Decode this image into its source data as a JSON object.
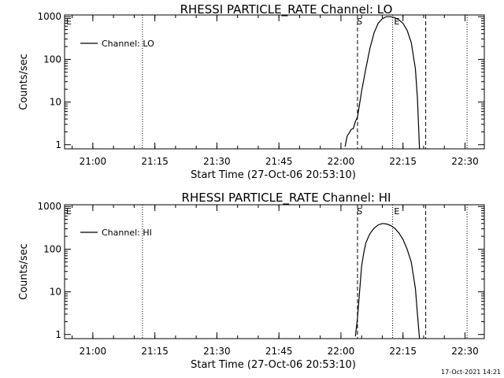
{
  "footer": {
    "timestamp": "17-Oct-2021 14:21"
  },
  "chart_data": [
    {
      "type": "line",
      "title": "RHESSI PARTICLE_RATE Channel: LO",
      "xlabel": "Start Time (27-Oct-06 20:53:10)",
      "ylabel": "Counts/sec",
      "yscale": "log",
      "ylim": [
        0.8,
        1100
      ],
      "xlim": [
        "20:53:10",
        "22:34:40"
      ],
      "x_ticks": [
        "21:00",
        "21:15",
        "21:30",
        "21:45",
        "22:00",
        "22:15",
        "22:30"
      ],
      "y_ticks": [
        "1",
        "10",
        "100",
        "1000"
      ],
      "legend": {
        "entries": [
          "Channel: LO"
        ],
        "position": "top-left"
      },
      "dotted_markers": [
        "21:12:00",
        "22:12:30",
        "22:30:30"
      ],
      "dashed_markers": [
        "22:04:00",
        "22:20:30"
      ],
      "marker_labels": [
        {
          "text": "S",
          "x": "22:04:30"
        },
        {
          "text": "E",
          "x": "22:13:30"
        }
      ],
      "series": [
        {
          "name": "Channel: LO",
          "x": [
            "22:01:00",
            "22:01:30",
            "22:02:00",
            "22:02:30",
            "22:03:00",
            "22:03:30",
            "22:04:00",
            "22:04:30",
            "22:05:00",
            "22:06:00",
            "22:07:00",
            "22:08:00",
            "22:09:00",
            "22:10:00",
            "22:11:00",
            "22:12:00",
            "22:13:00",
            "22:14:00",
            "22:15:00",
            "22:16:00",
            "22:17:00",
            "22:18:00",
            "22:18:30",
            "22:19:00"
          ],
          "y": [
            0.9,
            1.6,
            1.9,
            2.3,
            2.4,
            3.5,
            4.5,
            9,
            18,
            60,
            180,
            420,
            700,
            900,
            1000,
            1000,
            950,
            850,
            700,
            480,
            250,
            60,
            12,
            0.8
          ]
        }
      ]
    },
    {
      "type": "line",
      "title": "RHESSI PARTICLE_RATE Channel: HI",
      "xlabel": "Start Time (27-Oct-06 20:53:10)",
      "ylabel": "Counts/sec",
      "yscale": "log",
      "ylim": [
        0.8,
        1100
      ],
      "xlim": [
        "20:53:10",
        "22:34:40"
      ],
      "x_ticks": [
        "21:00",
        "21:15",
        "21:30",
        "21:45",
        "22:00",
        "22:15",
        "22:30"
      ],
      "y_ticks": [
        "1",
        "10",
        "100",
        "1000"
      ],
      "legend": {
        "entries": [
          "Channel: HI"
        ],
        "position": "top-left"
      },
      "dotted_markers": [
        "21:12:00",
        "22:12:30",
        "22:30:30"
      ],
      "dashed_markers": [
        "22:04:00",
        "22:20:30"
      ],
      "marker_labels": [
        {
          "text": "S",
          "x": "22:04:30"
        },
        {
          "text": "E",
          "x": "22:13:30"
        }
      ],
      "series": [
        {
          "name": "Channel: HI",
          "x": [
            "22:03:30",
            "22:04:00",
            "22:04:30",
            "22:05:00",
            "22:05:30",
            "22:06:00",
            "22:07:00",
            "22:08:00",
            "22:09:00",
            "22:10:00",
            "22:11:00",
            "22:12:00",
            "22:13:00",
            "22:14:00",
            "22:15:00",
            "22:16:00",
            "22:17:00",
            "22:18:00",
            "22:18:30",
            "22:19:00"
          ],
          "y": [
            0.9,
            2.5,
            10,
            40,
            80,
            140,
            230,
            310,
            370,
            400,
            390,
            360,
            310,
            240,
            170,
            100,
            50,
            12,
            3,
            0.8
          ]
        }
      ]
    }
  ]
}
